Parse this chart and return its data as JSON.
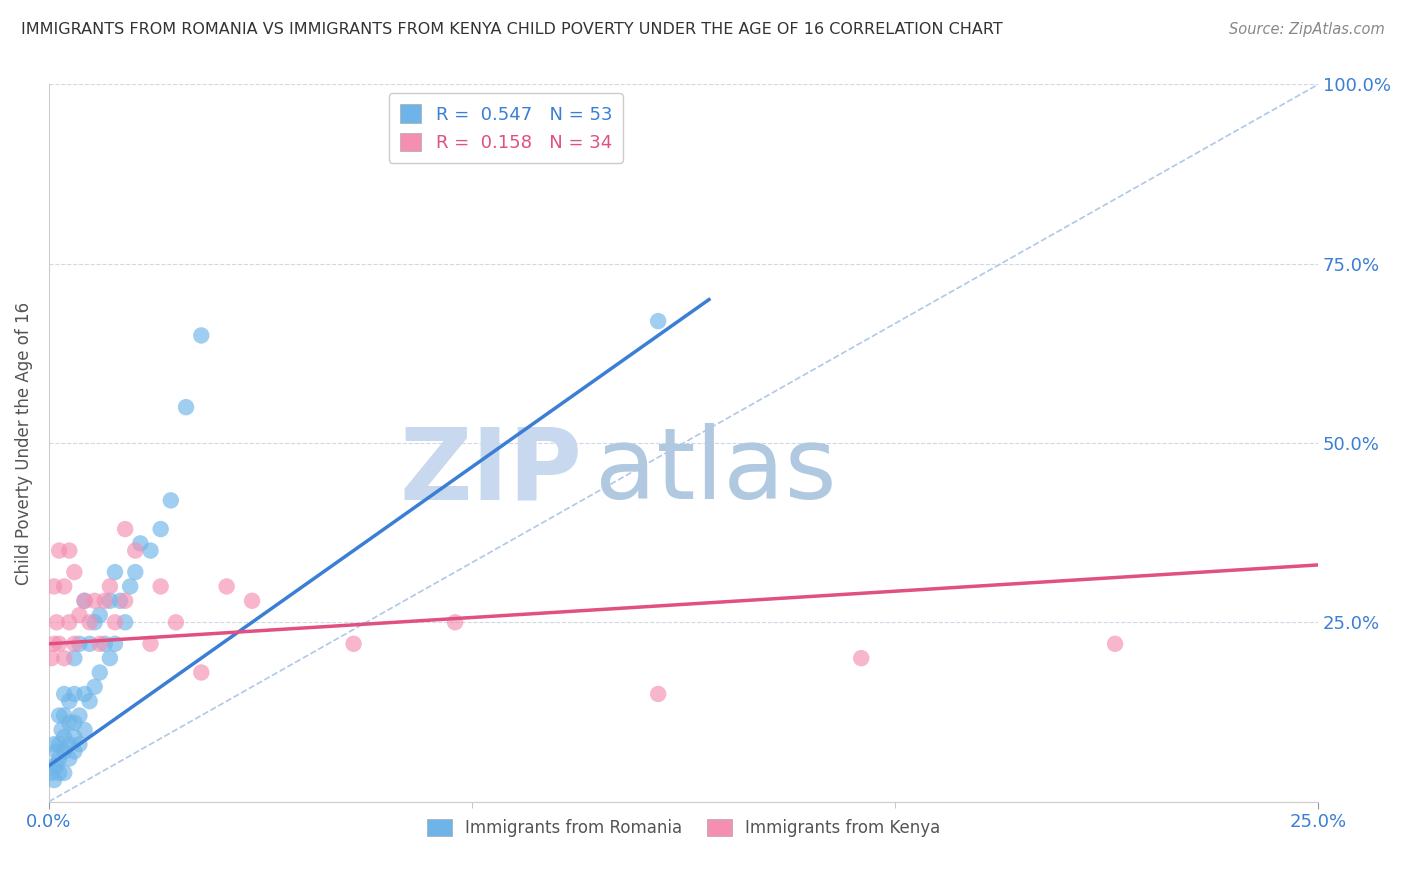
{
  "title": "IMMIGRANTS FROM ROMANIA VS IMMIGRANTS FROM KENYA CHILD POVERTY UNDER THE AGE OF 16 CORRELATION CHART",
  "source": "Source: ZipAtlas.com",
  "ylabel": "Child Poverty Under the Age of 16",
  "xlim": [
    0,
    0.25
  ],
  "ylim": [
    0,
    1.0
  ],
  "yticks": [
    0,
    0.25,
    0.5,
    0.75,
    1.0
  ],
  "ytick_labels": [
    "",
    "25.0%",
    "50.0%",
    "75.0%",
    "100.0%"
  ],
  "xtick_positions": [
    0,
    0.25
  ],
  "xtick_labels": [
    "0.0%",
    "25.0%"
  ],
  "romania_R": 0.547,
  "romania_N": 53,
  "kenya_R": 0.158,
  "kenya_N": 34,
  "romania_color": "#6eb4e8",
  "kenya_color": "#f48fb1",
  "romania_line_color": "#3a7fd5",
  "kenya_line_color": "#e05080",
  "ref_line_color": "#b0c8e8",
  "background_color": "#ffffff",
  "watermark_zip": "ZIP",
  "watermark_atlas": "atlas",
  "watermark_color_zip": "#c8d8ee",
  "watermark_color_atlas": "#b0c8e0",
  "romania_x": [
    0.0005,
    0.001,
    0.001,
    0.001,
    0.0015,
    0.0015,
    0.002,
    0.002,
    0.002,
    0.002,
    0.0025,
    0.003,
    0.003,
    0.003,
    0.003,
    0.003,
    0.004,
    0.004,
    0.004,
    0.004,
    0.005,
    0.005,
    0.005,
    0.005,
    0.005,
    0.006,
    0.006,
    0.006,
    0.007,
    0.007,
    0.007,
    0.008,
    0.008,
    0.009,
    0.009,
    0.01,
    0.01,
    0.011,
    0.012,
    0.012,
    0.013,
    0.013,
    0.014,
    0.015,
    0.016,
    0.017,
    0.018,
    0.02,
    0.022,
    0.024,
    0.027,
    0.03,
    0.12
  ],
  "romania_y": [
    0.04,
    0.03,
    0.05,
    0.08,
    0.05,
    0.07,
    0.04,
    0.06,
    0.08,
    0.12,
    0.1,
    0.04,
    0.07,
    0.09,
    0.12,
    0.15,
    0.06,
    0.08,
    0.11,
    0.14,
    0.07,
    0.09,
    0.11,
    0.15,
    0.2,
    0.08,
    0.12,
    0.22,
    0.1,
    0.15,
    0.28,
    0.14,
    0.22,
    0.16,
    0.25,
    0.18,
    0.26,
    0.22,
    0.2,
    0.28,
    0.22,
    0.32,
    0.28,
    0.25,
    0.3,
    0.32,
    0.36,
    0.35,
    0.38,
    0.42,
    0.55,
    0.65,
    0.67
  ],
  "kenya_x": [
    0.0005,
    0.001,
    0.001,
    0.0015,
    0.002,
    0.002,
    0.003,
    0.003,
    0.004,
    0.004,
    0.005,
    0.005,
    0.006,
    0.007,
    0.008,
    0.009,
    0.01,
    0.011,
    0.012,
    0.013,
    0.015,
    0.015,
    0.017,
    0.02,
    0.022,
    0.025,
    0.03,
    0.035,
    0.04,
    0.06,
    0.08,
    0.12,
    0.16,
    0.21
  ],
  "kenya_y": [
    0.2,
    0.22,
    0.3,
    0.25,
    0.22,
    0.35,
    0.2,
    0.3,
    0.25,
    0.35,
    0.22,
    0.32,
    0.26,
    0.28,
    0.25,
    0.28,
    0.22,
    0.28,
    0.3,
    0.25,
    0.38,
    0.28,
    0.35,
    0.22,
    0.3,
    0.25,
    0.18,
    0.3,
    0.28,
    0.22,
    0.25,
    0.15,
    0.2,
    0.22
  ],
  "romania_line_x": [
    0,
    0.13
  ],
  "romania_line_y": [
    0.05,
    0.7
  ],
  "kenya_line_x": [
    0,
    0.25
  ],
  "kenya_line_y": [
    0.22,
    0.33
  ]
}
